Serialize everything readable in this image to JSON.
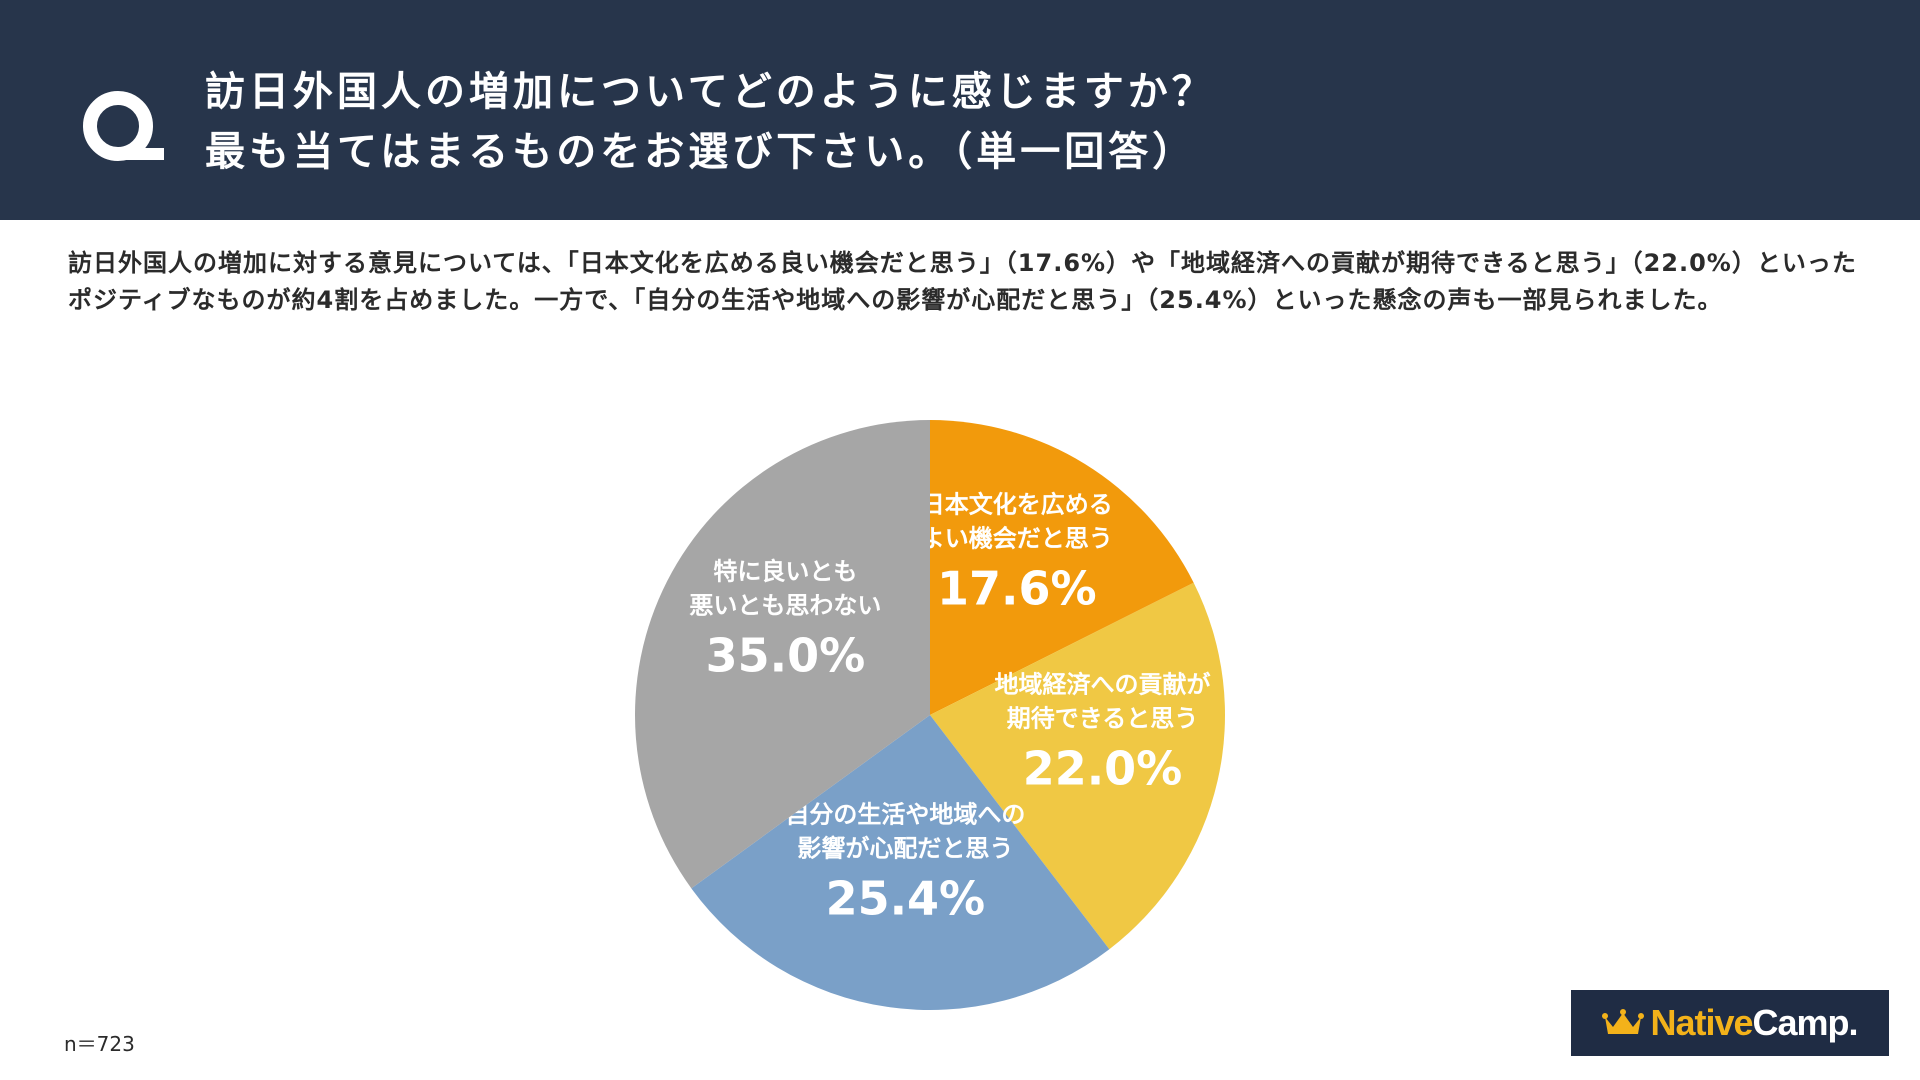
{
  "header": {
    "question_line1": "訪日外国人の増加についてどのように感じますか？",
    "question_line2": "最も当てはまるものをお選び下さい。（単一回答）",
    "bg_color": "#27354b"
  },
  "description": "訪日外国人の増加に対する意見については、「日本文化を広める良い機会だと思う」（17.6%）や「地域経済への貢献が期待できると思う」（22.0%）といったポジティブなものが約4割を占めました。一方で、「自分の生活や地域への影響が心配だと思う」（25.4%）といった懸念の声も一部見られました。",
  "sample_size": "n＝723",
  "logo": {
    "native": "Native",
    "camp": "Camp."
  },
  "chart_data": {
    "type": "pie",
    "start_angle_deg": 0,
    "direction": "clockwise",
    "slices": [
      {
        "label_line1": "日本文化を広める",
        "label_line2": "よい機会だと思う",
        "value": 17.6,
        "value_label": "17.6%",
        "color": "#f29a0c"
      },
      {
        "label_line1": "地域経済への貢献が",
        "label_line2": "期待できると思う",
        "value": 22.0,
        "value_label": "22.0%",
        "color": "#f0c844"
      },
      {
        "label_line1": "自分の生活や地域への",
        "label_line2": "影響が心配だと思う",
        "value": 25.4,
        "value_label": "25.4%",
        "color": "#7aa0c8"
      },
      {
        "label_line1": "特に良いとも",
        "label_line2": "悪いとも思わない",
        "value": 35.0,
        "value_label": "35.0%",
        "color": "#a6a6a6"
      }
    ]
  }
}
